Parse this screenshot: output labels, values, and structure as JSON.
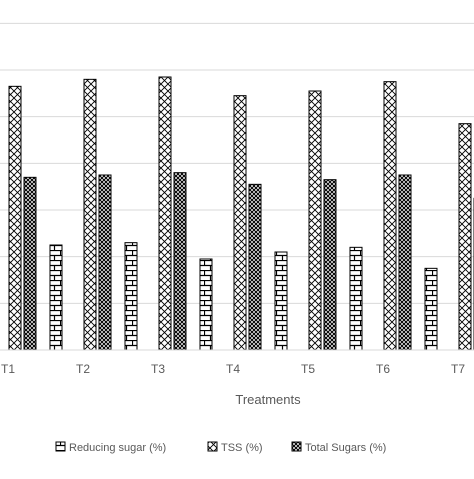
{
  "chart_data": {
    "type": "bar",
    "xlabel": "Treatments",
    "ylabel": "",
    "title": "",
    "categories": [
      "T1",
      "T2",
      "T3",
      "T4",
      "T5",
      "T6",
      "T7"
    ],
    "series": [
      {
        "name": "Reducing sugar (%)",
        "values": [
          2.25,
          2.25,
          2.3,
          1.95,
          2.1,
          2.2,
          1.75
        ]
      },
      {
        "name": "TSS (%)",
        "values": [
          5.65,
          5.8,
          5.85,
          5.45,
          5.55,
          5.75,
          4.85
        ]
      },
      {
        "name": "Total Sugars (%)",
        "values": [
          3.7,
          3.75,
          3.8,
          3.55,
          3.65,
          3.75,
          3.25
        ]
      }
    ],
    "ylim": [
      0,
      7.5
    ],
    "grid": true,
    "legend_position": "bottom",
    "colors": {
      "border": "#000000",
      "fill": "#ffffff",
      "grid": "#d9d9d9",
      "text": "#595959"
    }
  }
}
